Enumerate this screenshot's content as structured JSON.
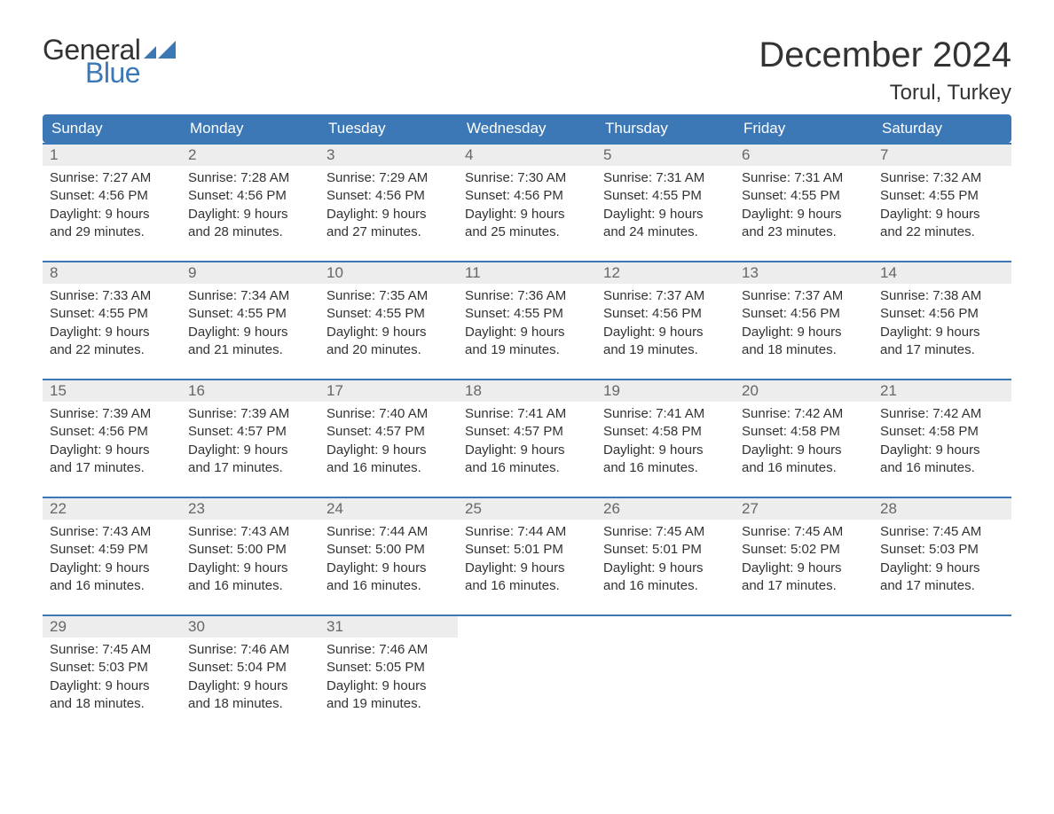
{
  "brand": {
    "top": "General",
    "bottom": "Blue",
    "top_color": "#333333",
    "bottom_color": "#3b78b5",
    "mark_color": "#3b78b5"
  },
  "title": "December 2024",
  "location": "Torul, Turkey",
  "styling": {
    "header_bg": "#3b78b5",
    "header_text": "#ffffff",
    "daynum_bg": "#ededed",
    "daynum_text": "#666666",
    "week_border": "#3b78b5",
    "body_text": "#333333",
    "background": "#ffffff",
    "title_fontsize": 40,
    "location_fontsize": 24,
    "weekday_fontsize": 17,
    "daynum_fontsize": 17,
    "info_fontsize": 15
  },
  "weekdays": [
    "Sunday",
    "Monday",
    "Tuesday",
    "Wednesday",
    "Thursday",
    "Friday",
    "Saturday"
  ],
  "weeks": [
    [
      {
        "day": "1",
        "sunrise": "Sunrise: 7:27 AM",
        "sunset": "Sunset: 4:56 PM",
        "daylight1": "Daylight: 9 hours",
        "daylight2": "and 29 minutes."
      },
      {
        "day": "2",
        "sunrise": "Sunrise: 7:28 AM",
        "sunset": "Sunset: 4:56 PM",
        "daylight1": "Daylight: 9 hours",
        "daylight2": "and 28 minutes."
      },
      {
        "day": "3",
        "sunrise": "Sunrise: 7:29 AM",
        "sunset": "Sunset: 4:56 PM",
        "daylight1": "Daylight: 9 hours",
        "daylight2": "and 27 minutes."
      },
      {
        "day": "4",
        "sunrise": "Sunrise: 7:30 AM",
        "sunset": "Sunset: 4:56 PM",
        "daylight1": "Daylight: 9 hours",
        "daylight2": "and 25 minutes."
      },
      {
        "day": "5",
        "sunrise": "Sunrise: 7:31 AM",
        "sunset": "Sunset: 4:55 PM",
        "daylight1": "Daylight: 9 hours",
        "daylight2": "and 24 minutes."
      },
      {
        "day": "6",
        "sunrise": "Sunrise: 7:31 AM",
        "sunset": "Sunset: 4:55 PM",
        "daylight1": "Daylight: 9 hours",
        "daylight2": "and 23 minutes."
      },
      {
        "day": "7",
        "sunrise": "Sunrise: 7:32 AM",
        "sunset": "Sunset: 4:55 PM",
        "daylight1": "Daylight: 9 hours",
        "daylight2": "and 22 minutes."
      }
    ],
    [
      {
        "day": "8",
        "sunrise": "Sunrise: 7:33 AM",
        "sunset": "Sunset: 4:55 PM",
        "daylight1": "Daylight: 9 hours",
        "daylight2": "and 22 minutes."
      },
      {
        "day": "9",
        "sunrise": "Sunrise: 7:34 AM",
        "sunset": "Sunset: 4:55 PM",
        "daylight1": "Daylight: 9 hours",
        "daylight2": "and 21 minutes."
      },
      {
        "day": "10",
        "sunrise": "Sunrise: 7:35 AM",
        "sunset": "Sunset: 4:55 PM",
        "daylight1": "Daylight: 9 hours",
        "daylight2": "and 20 minutes."
      },
      {
        "day": "11",
        "sunrise": "Sunrise: 7:36 AM",
        "sunset": "Sunset: 4:55 PM",
        "daylight1": "Daylight: 9 hours",
        "daylight2": "and 19 minutes."
      },
      {
        "day": "12",
        "sunrise": "Sunrise: 7:37 AM",
        "sunset": "Sunset: 4:56 PM",
        "daylight1": "Daylight: 9 hours",
        "daylight2": "and 19 minutes."
      },
      {
        "day": "13",
        "sunrise": "Sunrise: 7:37 AM",
        "sunset": "Sunset: 4:56 PM",
        "daylight1": "Daylight: 9 hours",
        "daylight2": "and 18 minutes."
      },
      {
        "day": "14",
        "sunrise": "Sunrise: 7:38 AM",
        "sunset": "Sunset: 4:56 PM",
        "daylight1": "Daylight: 9 hours",
        "daylight2": "and 17 minutes."
      }
    ],
    [
      {
        "day": "15",
        "sunrise": "Sunrise: 7:39 AM",
        "sunset": "Sunset: 4:56 PM",
        "daylight1": "Daylight: 9 hours",
        "daylight2": "and 17 minutes."
      },
      {
        "day": "16",
        "sunrise": "Sunrise: 7:39 AM",
        "sunset": "Sunset: 4:57 PM",
        "daylight1": "Daylight: 9 hours",
        "daylight2": "and 17 minutes."
      },
      {
        "day": "17",
        "sunrise": "Sunrise: 7:40 AM",
        "sunset": "Sunset: 4:57 PM",
        "daylight1": "Daylight: 9 hours",
        "daylight2": "and 16 minutes."
      },
      {
        "day": "18",
        "sunrise": "Sunrise: 7:41 AM",
        "sunset": "Sunset: 4:57 PM",
        "daylight1": "Daylight: 9 hours",
        "daylight2": "and 16 minutes."
      },
      {
        "day": "19",
        "sunrise": "Sunrise: 7:41 AM",
        "sunset": "Sunset: 4:58 PM",
        "daylight1": "Daylight: 9 hours",
        "daylight2": "and 16 minutes."
      },
      {
        "day": "20",
        "sunrise": "Sunrise: 7:42 AM",
        "sunset": "Sunset: 4:58 PM",
        "daylight1": "Daylight: 9 hours",
        "daylight2": "and 16 minutes."
      },
      {
        "day": "21",
        "sunrise": "Sunrise: 7:42 AM",
        "sunset": "Sunset: 4:58 PM",
        "daylight1": "Daylight: 9 hours",
        "daylight2": "and 16 minutes."
      }
    ],
    [
      {
        "day": "22",
        "sunrise": "Sunrise: 7:43 AM",
        "sunset": "Sunset: 4:59 PM",
        "daylight1": "Daylight: 9 hours",
        "daylight2": "and 16 minutes."
      },
      {
        "day": "23",
        "sunrise": "Sunrise: 7:43 AM",
        "sunset": "Sunset: 5:00 PM",
        "daylight1": "Daylight: 9 hours",
        "daylight2": "and 16 minutes."
      },
      {
        "day": "24",
        "sunrise": "Sunrise: 7:44 AM",
        "sunset": "Sunset: 5:00 PM",
        "daylight1": "Daylight: 9 hours",
        "daylight2": "and 16 minutes."
      },
      {
        "day": "25",
        "sunrise": "Sunrise: 7:44 AM",
        "sunset": "Sunset: 5:01 PM",
        "daylight1": "Daylight: 9 hours",
        "daylight2": "and 16 minutes."
      },
      {
        "day": "26",
        "sunrise": "Sunrise: 7:45 AM",
        "sunset": "Sunset: 5:01 PM",
        "daylight1": "Daylight: 9 hours",
        "daylight2": "and 16 minutes."
      },
      {
        "day": "27",
        "sunrise": "Sunrise: 7:45 AM",
        "sunset": "Sunset: 5:02 PM",
        "daylight1": "Daylight: 9 hours",
        "daylight2": "and 17 minutes."
      },
      {
        "day": "28",
        "sunrise": "Sunrise: 7:45 AM",
        "sunset": "Sunset: 5:03 PM",
        "daylight1": "Daylight: 9 hours",
        "daylight2": "and 17 minutes."
      }
    ],
    [
      {
        "day": "29",
        "sunrise": "Sunrise: 7:45 AM",
        "sunset": "Sunset: 5:03 PM",
        "daylight1": "Daylight: 9 hours",
        "daylight2": "and 18 minutes."
      },
      {
        "day": "30",
        "sunrise": "Sunrise: 7:46 AM",
        "sunset": "Sunset: 5:04 PM",
        "daylight1": "Daylight: 9 hours",
        "daylight2": "and 18 minutes."
      },
      {
        "day": "31",
        "sunrise": "Sunrise: 7:46 AM",
        "sunset": "Sunset: 5:05 PM",
        "daylight1": "Daylight: 9 hours",
        "daylight2": "and 19 minutes."
      },
      {
        "empty": true
      },
      {
        "empty": true
      },
      {
        "empty": true
      },
      {
        "empty": true
      }
    ]
  ]
}
